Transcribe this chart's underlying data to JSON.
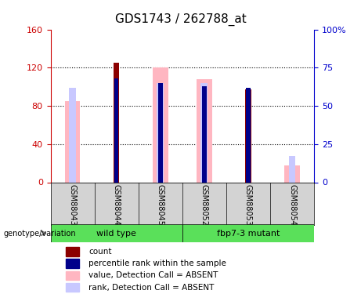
{
  "title": "GDS1743 / 262788_at",
  "samples": [
    "GSM88043",
    "GSM88044",
    "GSM88045",
    "GSM88052",
    "GSM88053",
    "GSM88054"
  ],
  "group_labels": [
    "wild type",
    "fbp7-3 mutant"
  ],
  "value_absent": [
    85,
    0,
    120,
    108,
    0,
    18
  ],
  "rank_absent": [
    62,
    0,
    65,
    65,
    0,
    17
  ],
  "count_red": [
    0,
    125,
    0,
    0,
    97,
    0
  ],
  "percentile_blue": [
    0,
    68,
    65,
    63,
    62,
    0
  ],
  "ylim_left": [
    0,
    160
  ],
  "ylim_right": [
    0,
    100
  ],
  "yticks_left": [
    0,
    40,
    80,
    120,
    160
  ],
  "yticks_right": [
    0,
    25,
    50,
    75,
    100
  ],
  "ylabel_left_color": "#cc0000",
  "ylabel_right_color": "#0000cc",
  "pink_color": "#FFB6C1",
  "lavender_color": "#C8C8FF",
  "dark_red": "#8B0000",
  "dark_blue": "#00008B",
  "bg_color": "#FFFFFF",
  "plot_bg": "#FFFFFF",
  "sample_bg": "#D3D3D3",
  "green_color": "#5AE05A",
  "genotype_label": "genotype/variation",
  "legend_items": [
    "count",
    "percentile rank within the sample",
    "value, Detection Call = ABSENT",
    "rank, Detection Call = ABSENT"
  ],
  "legend_colors": [
    "#8B0000",
    "#00008B",
    "#FFB6C1",
    "#C8C8FF"
  ]
}
